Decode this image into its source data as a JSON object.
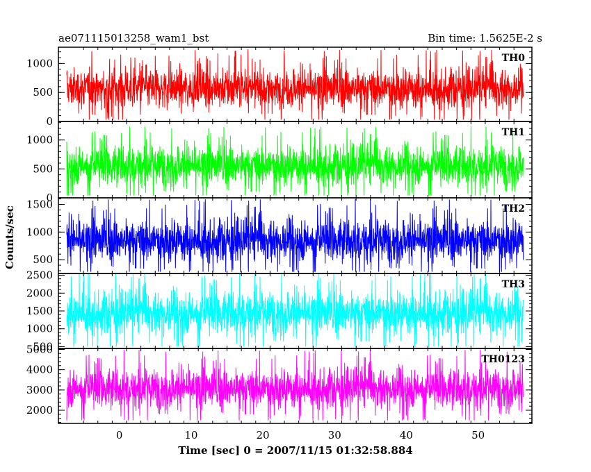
{
  "chart_data": {
    "type": "line",
    "title_left": "ae071115013258_wam1_bst",
    "title_right": "Bin time: 1.5625E-2 s",
    "xlabel": "Time [sec] 0 = 2007/11/15 01:32:58.884",
    "ylabel": "Counts/sec",
    "xlim": [
      -8.5,
      57.5
    ],
    "x_ticks": [
      "0",
      "10",
      "20",
      "30",
      "40",
      "50"
    ],
    "x_tick_values": [
      0,
      10,
      20,
      30,
      40,
      50
    ],
    "x_data_range": [
      -7.3,
      56.2
    ],
    "panels": [
      {
        "name": "TH0",
        "color": "#ff0000",
        "ylim": [
          0,
          1280
        ],
        "y_ticks": [
          "0",
          "500",
          "1000"
        ],
        "y_tick_values": [
          0,
          500,
          1000
        ],
        "mean": 570,
        "spread": 170,
        "min": 30,
        "max": 1280
      },
      {
        "name": "TH1",
        "color": "#00ff00",
        "ylim": [
          0,
          1320
        ],
        "y_ticks": [
          "0",
          "500",
          "1000"
        ],
        "y_tick_values": [
          0,
          500,
          1000
        ],
        "mean": 560,
        "spread": 170,
        "min": 40,
        "max": 1320
      },
      {
        "name": "TH2",
        "color": "#0000ff",
        "ylim": [
          250,
          1620
        ],
        "y_ticks": [
          "500",
          "1000",
          "1500"
        ],
        "y_tick_values": [
          500,
          1000,
          1500
        ],
        "mean": 850,
        "spread": 190,
        "min": 280,
        "max": 1620
      },
      {
        "name": "TH3",
        "color": "#00ffff",
        "ylim": [
          450,
          2550
        ],
        "y_ticks": [
          "500",
          "1000",
          "1500",
          "2000",
          "2500"
        ],
        "y_tick_values": [
          500,
          1000,
          1500,
          2000,
          2500
        ],
        "mean": 1450,
        "spread": 300,
        "min": 500,
        "max": 2550
      },
      {
        "name": "TH0123",
        "color": "#ff00ff",
        "ylim": [
          1350,
          5050
        ],
        "y_ticks": [
          "2000",
          "3000",
          "4000",
          "5000"
        ],
        "y_tick_values": [
          2000,
          3000,
          4000,
          5000
        ],
        "mean": 3080,
        "spread": 480,
        "min": 1500,
        "max": 5050
      }
    ]
  }
}
